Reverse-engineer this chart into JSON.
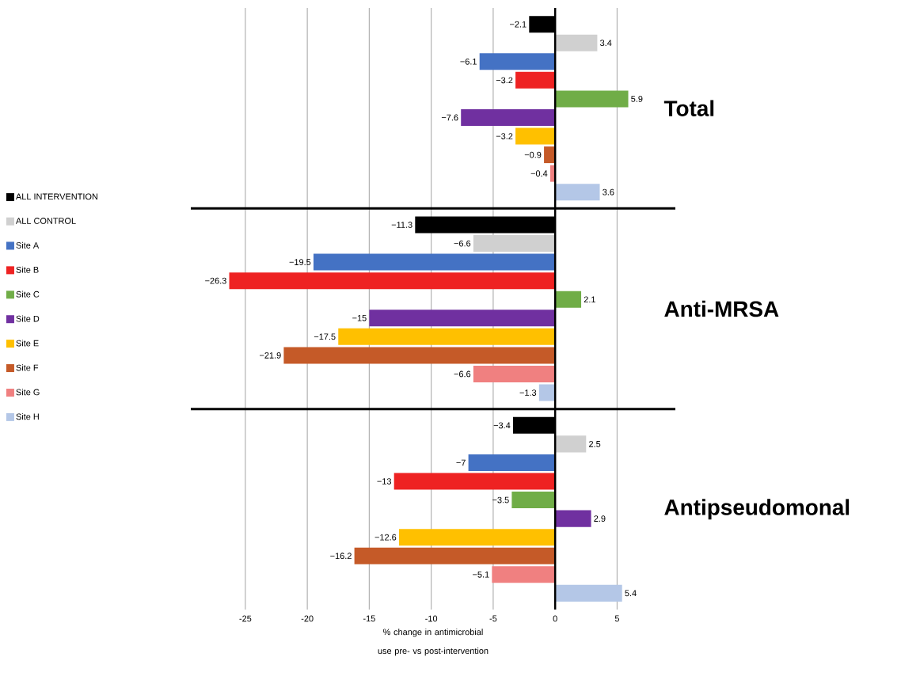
{
  "chart_data": {
    "type": "bar",
    "orientation": "horizontal",
    "categories": [
      "Total",
      "Anti-MRSA",
      "Antipseudomonal"
    ],
    "series": [
      {
        "name": "ALL INTERVENTION",
        "color": "#000000",
        "values": [
          -2.1,
          -11.3,
          -3.4
        ],
        "value_labels": [
          "−2.1",
          "−11.3",
          "−3.4"
        ]
      },
      {
        "name": "ALL CONTROL",
        "color": "#d0d0d0",
        "values": [
          3.4,
          -6.6,
          2.5
        ],
        "value_labels": [
          "3.4",
          "−6.6",
          "2.5"
        ]
      },
      {
        "name": "Site A",
        "color": "#4472c4",
        "values": [
          -6.1,
          -19.5,
          -7
        ],
        "value_labels": [
          "−6.1",
          "−19.5",
          "−7"
        ]
      },
      {
        "name": "Site B",
        "color": "#ee2222",
        "values": [
          -3.2,
          -26.3,
          -13
        ],
        "value_labels": [
          "−3.2",
          "−26.3",
          "−13"
        ]
      },
      {
        "name": "Site C",
        "color": "#70ad47",
        "values": [
          5.9,
          2.1,
          -3.5
        ],
        "value_labels": [
          "5.9",
          "2.1",
          "−3.5"
        ]
      },
      {
        "name": "Site D",
        "color": "#7030a0",
        "values": [
          -7.6,
          -15,
          2.9
        ],
        "value_labels": [
          "−7.6",
          "−15",
          "2.9"
        ]
      },
      {
        "name": "Site E",
        "color": "#ffc000",
        "values": [
          -3.2,
          -17.5,
          -12.6
        ],
        "value_labels": [
          "−3.2",
          "−17.5",
          "−12.6"
        ]
      },
      {
        "name": "Site F",
        "color": "#c55a28",
        "values": [
          -0.9,
          -21.9,
          -16.2
        ],
        "value_labels": [
          "−0.9",
          "−21.9",
          "−16.2"
        ]
      },
      {
        "name": "Site G",
        "color": "#f08080",
        "values": [
          -0.4,
          -6.6,
          -5.1
        ],
        "value_labels": [
          "−0.4",
          "−6.6",
          "−5.1"
        ]
      },
      {
        "name": "Site H",
        "color": "#b4c7e7",
        "values": [
          3.6,
          -1.3,
          5.4
        ],
        "value_labels": [
          "3.6",
          "−1.3",
          "5.4"
        ]
      }
    ],
    "xlim": [
      -29.4,
      9.7
    ],
    "xticks": [
      -25,
      -20,
      -15,
      -10,
      -5,
      0,
      5
    ],
    "xlabel": "% change in antimicrobial use pre- vs post-intervention",
    "grid": "x",
    "legend": "left"
  }
}
